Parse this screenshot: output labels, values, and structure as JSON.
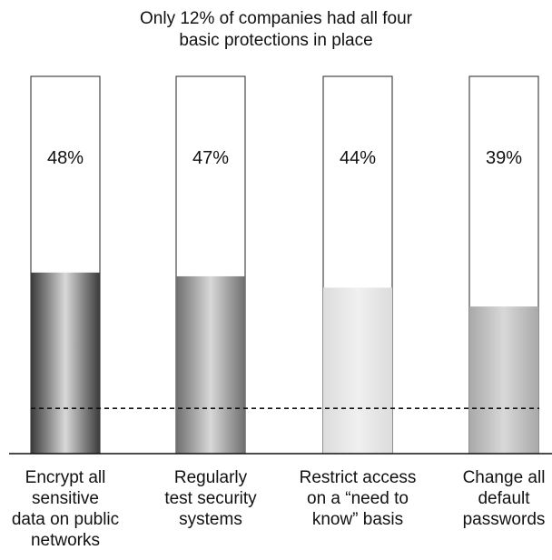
{
  "chart_data": {
    "type": "bar",
    "title_lines": [
      "Only 12% of companies had all four",
      "basic protections in place"
    ],
    "categories": [
      [
        "Encrypt all",
        "sensitive",
        "data on public",
        "networks"
      ],
      [
        "Regularly",
        "test security",
        "systems"
      ],
      [
        "Restrict access",
        "on a “need to",
        "know” basis"
      ],
      [
        "Change all",
        "default",
        "passwords"
      ]
    ],
    "values": [
      48,
      47,
      44,
      39
    ],
    "value_labels": [
      "48%",
      "47%",
      "44%",
      "39%"
    ],
    "reference_line": {
      "value": 12,
      "style": "dashed"
    },
    "ylim": [
      0,
      100
    ],
    "bar_colors": [
      "#3a3a3a",
      "#6f6f6f",
      "#dcdcdc",
      "#a9a9a9"
    ],
    "grid": false
  }
}
